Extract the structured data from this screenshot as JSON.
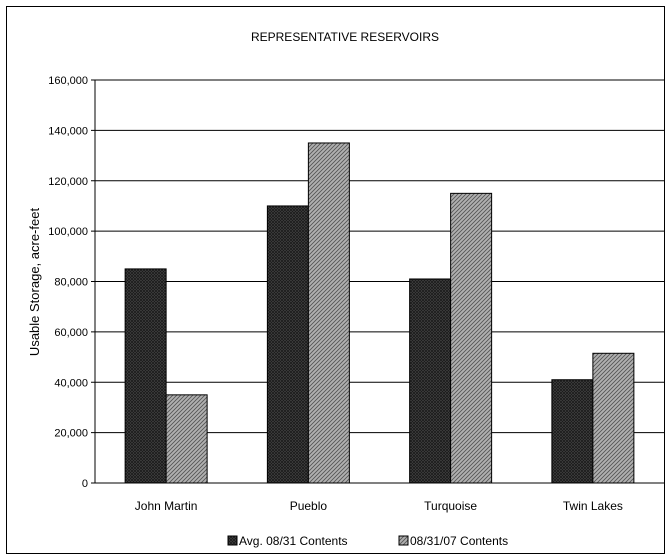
{
  "chart_data": {
    "type": "bar",
    "title": "REPRESENTATIVE RESERVOIRS",
    "xlabel": "",
    "ylabel": "Usable Storage, acre-feet",
    "categories": [
      "John Martin",
      "Pueblo",
      "Turquoise",
      "Twin Lakes"
    ],
    "series": [
      {
        "name": "Avg. 08/31 Contents",
        "values": [
          85000,
          110000,
          81000,
          41000
        ],
        "pattern": "crosshatch-dark",
        "color": "#333333"
      },
      {
        "name": "08/31/07 Contents",
        "values": [
          35000,
          135000,
          115000,
          51500
        ],
        "pattern": "diagonal-light",
        "color": "#999999"
      }
    ],
    "ylim": [
      0,
      160000
    ],
    "yticks": [
      0,
      20000,
      40000,
      60000,
      80000,
      100000,
      120000,
      140000,
      160000
    ],
    "ytick_labels": [
      "0",
      "20,000",
      "40,000",
      "60,000",
      "80,000",
      "100,000",
      "120,000",
      "140,000",
      "160,000"
    ],
    "grid": true,
    "legend_position": "bottom"
  }
}
